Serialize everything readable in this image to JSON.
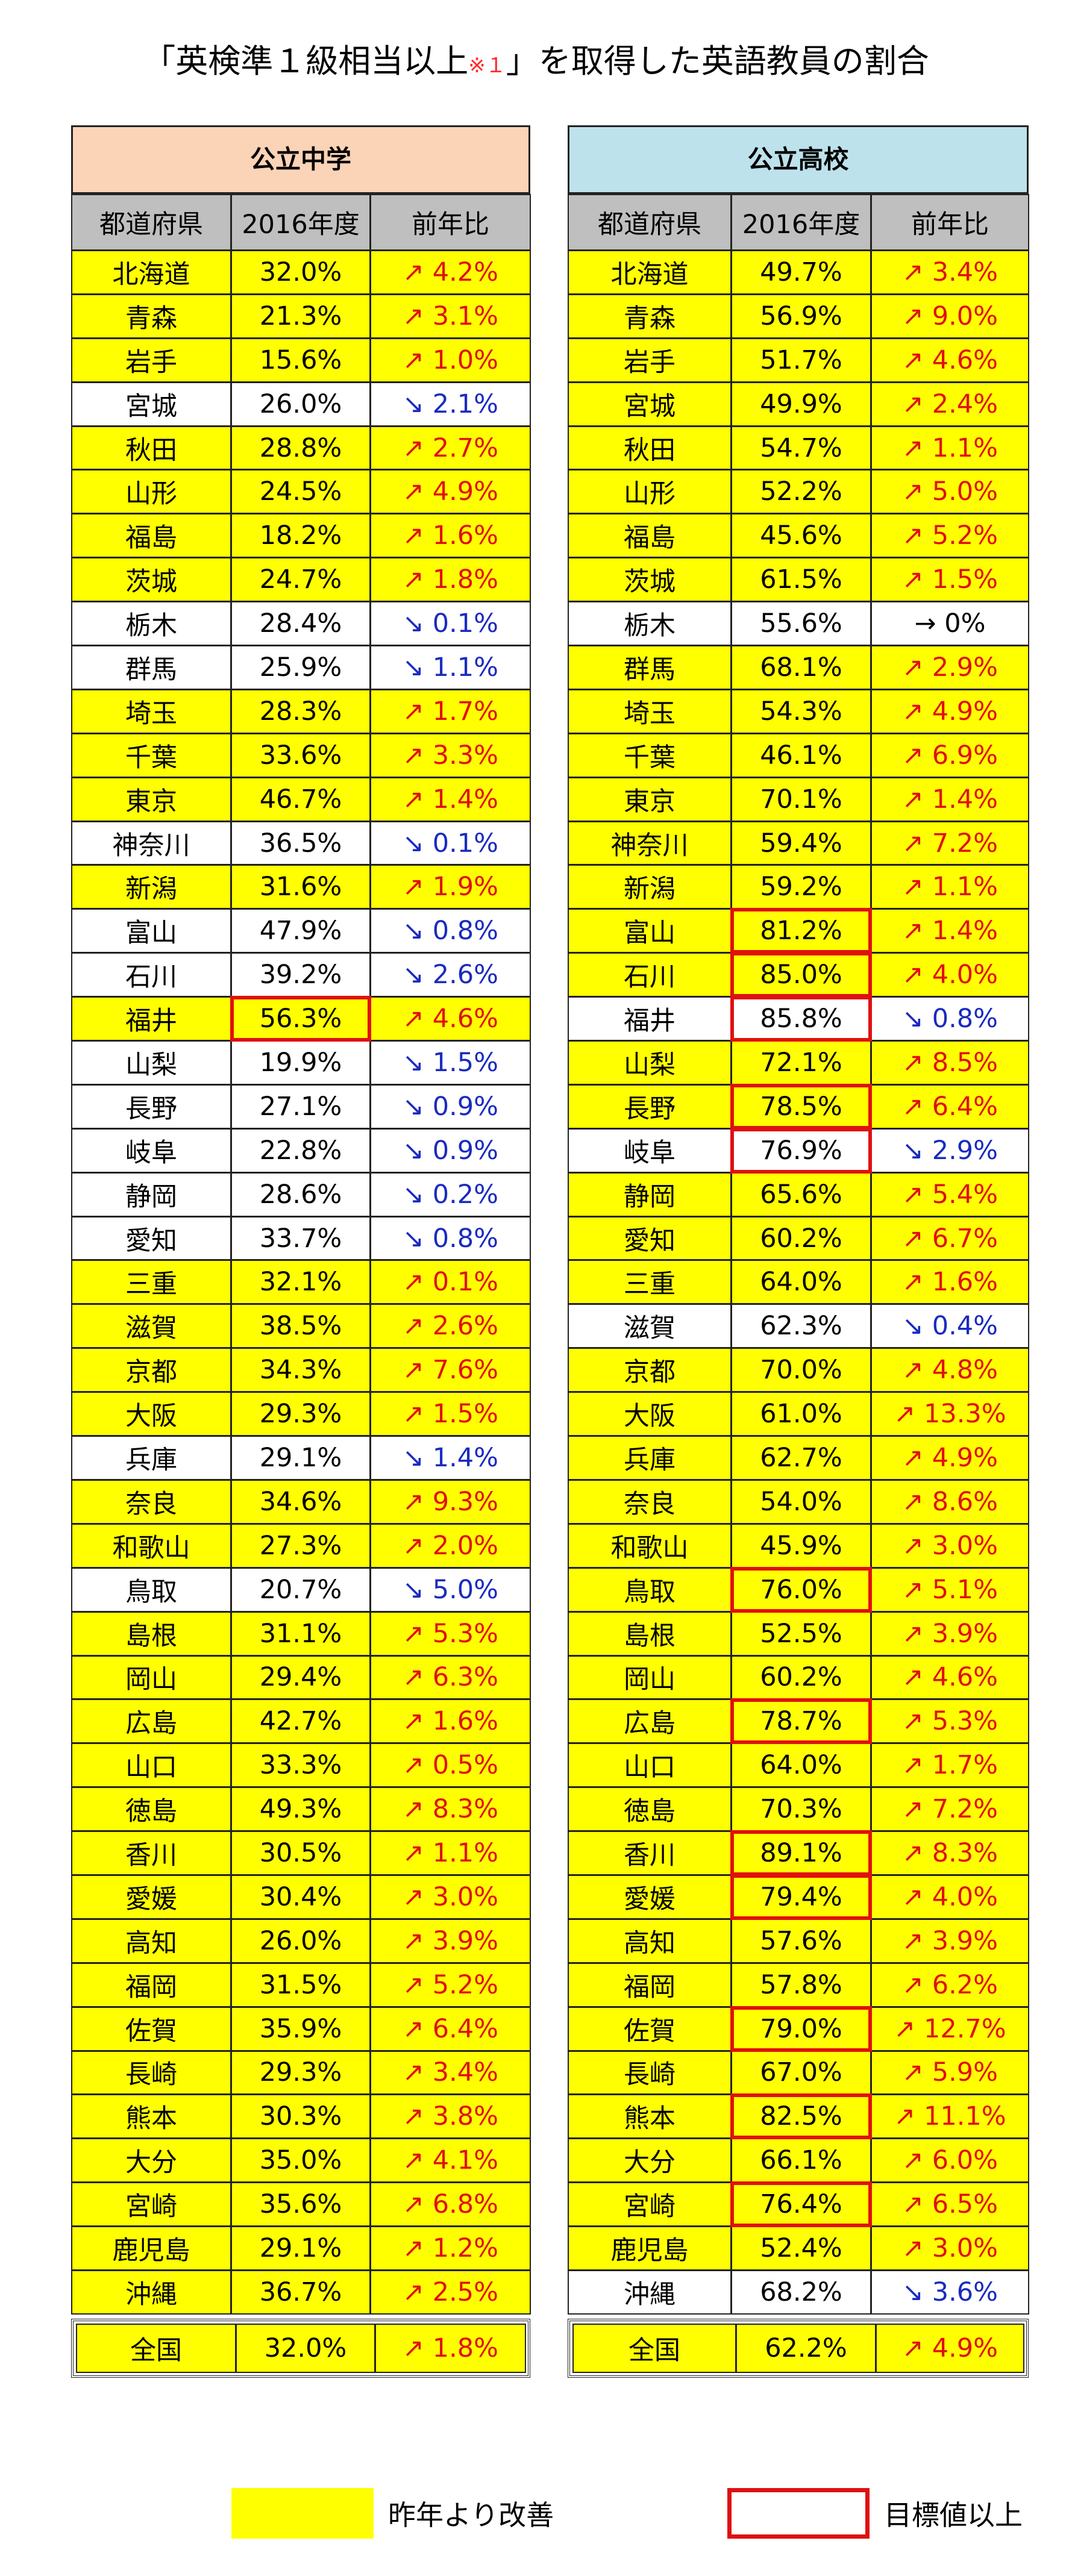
{
  "title": {
    "main": "「英検準１級相当以上",
    "note": "※１",
    "tail": "」を取得した英語教員の割合"
  },
  "columns": {
    "pref": "都道府県",
    "year": "2016年度",
    "change": "前年比"
  },
  "tables": [
    {
      "heading": "公立中学",
      "rows": [
        {
          "pref": "北海道",
          "value": "32.0%",
          "change": "↗ 4.2%",
          "trend": "up",
          "improved": true,
          "target": false
        },
        {
          "pref": "青森",
          "value": "21.3%",
          "change": "↗ 3.1%",
          "trend": "up",
          "improved": true,
          "target": false
        },
        {
          "pref": "岩手",
          "value": "15.6%",
          "change": "↗ 1.0%",
          "trend": "up",
          "improved": true,
          "target": false
        },
        {
          "pref": "宮城",
          "value": "26.0%",
          "change": "↘ 2.1%",
          "trend": "down",
          "improved": false,
          "target": false
        },
        {
          "pref": "秋田",
          "value": "28.8%",
          "change": "↗ 2.7%",
          "trend": "up",
          "improved": true,
          "target": false
        },
        {
          "pref": "山形",
          "value": "24.5%",
          "change": "↗ 4.9%",
          "trend": "up",
          "improved": true,
          "target": false
        },
        {
          "pref": "福島",
          "value": "18.2%",
          "change": "↗ 1.6%",
          "trend": "up",
          "improved": true,
          "target": false
        },
        {
          "pref": "茨城",
          "value": "24.7%",
          "change": "↗ 1.8%",
          "trend": "up",
          "improved": true,
          "target": false
        },
        {
          "pref": "栃木",
          "value": "28.4%",
          "change": "↘ 0.1%",
          "trend": "down",
          "improved": false,
          "target": false
        },
        {
          "pref": "群馬",
          "value": "25.9%",
          "change": "↘ 1.1%",
          "trend": "down",
          "improved": false,
          "target": false
        },
        {
          "pref": "埼玉",
          "value": "28.3%",
          "change": "↗ 1.7%",
          "trend": "up",
          "improved": true,
          "target": false
        },
        {
          "pref": "千葉",
          "value": "33.6%",
          "change": "↗ 3.3%",
          "trend": "up",
          "improved": true,
          "target": false
        },
        {
          "pref": "東京",
          "value": "46.7%",
          "change": "↗ 1.4%",
          "trend": "up",
          "improved": true,
          "target": false
        },
        {
          "pref": "神奈川",
          "value": "36.5%",
          "change": "↘ 0.1%",
          "trend": "down",
          "improved": false,
          "target": false
        },
        {
          "pref": "新潟",
          "value": "31.6%",
          "change": "↗ 1.9%",
          "trend": "up",
          "improved": true,
          "target": false
        },
        {
          "pref": "富山",
          "value": "47.9%",
          "change": "↘ 0.8%",
          "trend": "down",
          "improved": false,
          "target": false
        },
        {
          "pref": "石川",
          "value": "39.2%",
          "change": "↘ 2.6%",
          "trend": "down",
          "improved": false,
          "target": false
        },
        {
          "pref": "福井",
          "value": "56.3%",
          "change": "↗ 4.6%",
          "trend": "up",
          "improved": true,
          "target": true
        },
        {
          "pref": "山梨",
          "value": "19.9%",
          "change": "↘ 1.5%",
          "trend": "down",
          "improved": false,
          "target": false
        },
        {
          "pref": "長野",
          "value": "27.1%",
          "change": "↘ 0.9%",
          "trend": "down",
          "improved": false,
          "target": false
        },
        {
          "pref": "岐阜",
          "value": "22.8%",
          "change": "↘ 0.9%",
          "trend": "down",
          "improved": false,
          "target": false
        },
        {
          "pref": "静岡",
          "value": "28.6%",
          "change": "↘ 0.2%",
          "trend": "down",
          "improved": false,
          "target": false
        },
        {
          "pref": "愛知",
          "value": "33.7%",
          "change": "↘ 0.8%",
          "trend": "down",
          "improved": false,
          "target": false
        },
        {
          "pref": "三重",
          "value": "32.1%",
          "change": "↗ 0.1%",
          "trend": "up",
          "improved": true,
          "target": false
        },
        {
          "pref": "滋賀",
          "value": "38.5%",
          "change": "↗ 2.6%",
          "trend": "up",
          "improved": true,
          "target": false
        },
        {
          "pref": "京都",
          "value": "34.3%",
          "change": "↗ 7.6%",
          "trend": "up",
          "improved": true,
          "target": false
        },
        {
          "pref": "大阪",
          "value": "29.3%",
          "change": "↗ 1.5%",
          "trend": "up",
          "improved": true,
          "target": false
        },
        {
          "pref": "兵庫",
          "value": "29.1%",
          "change": "↘ 1.4%",
          "trend": "down",
          "improved": false,
          "target": false
        },
        {
          "pref": "奈良",
          "value": "34.6%",
          "change": "↗ 9.3%",
          "trend": "up",
          "improved": true,
          "target": false
        },
        {
          "pref": "和歌山",
          "value": "27.3%",
          "change": "↗ 2.0%",
          "trend": "up",
          "improved": true,
          "target": false
        },
        {
          "pref": "鳥取",
          "value": "20.7%",
          "change": "↘ 5.0%",
          "trend": "down",
          "improved": false,
          "target": false
        },
        {
          "pref": "島根",
          "value": "31.1%",
          "change": "↗ 5.3%",
          "trend": "up",
          "improved": true,
          "target": false
        },
        {
          "pref": "岡山",
          "value": "29.4%",
          "change": "↗ 6.3%",
          "trend": "up",
          "improved": true,
          "target": false
        },
        {
          "pref": "広島",
          "value": "42.7%",
          "change": "↗ 1.6%",
          "trend": "up",
          "improved": true,
          "target": false
        },
        {
          "pref": "山口",
          "value": "33.3%",
          "change": "↗ 0.5%",
          "trend": "up",
          "improved": true,
          "target": false
        },
        {
          "pref": "徳島",
          "value": "49.3%",
          "change": "↗ 8.3%",
          "trend": "up",
          "improved": true,
          "target": false
        },
        {
          "pref": "香川",
          "value": "30.5%",
          "change": "↗ 1.1%",
          "trend": "up",
          "improved": true,
          "target": false
        },
        {
          "pref": "愛媛",
          "value": "30.4%",
          "change": "↗ 3.0%",
          "trend": "up",
          "improved": true,
          "target": false
        },
        {
          "pref": "高知",
          "value": "26.0%",
          "change": "↗ 3.9%",
          "trend": "up",
          "improved": true,
          "target": false
        },
        {
          "pref": "福岡",
          "value": "31.5%",
          "change": "↗ 5.2%",
          "trend": "up",
          "improved": true,
          "target": false
        },
        {
          "pref": "佐賀",
          "value": "35.9%",
          "change": "↗ 6.4%",
          "trend": "up",
          "improved": true,
          "target": false
        },
        {
          "pref": "長崎",
          "value": "29.3%",
          "change": "↗ 3.4%",
          "trend": "up",
          "improved": true,
          "target": false
        },
        {
          "pref": "熊本",
          "value": "30.3%",
          "change": "↗ 3.8%",
          "trend": "up",
          "improved": true,
          "target": false
        },
        {
          "pref": "大分",
          "value": "35.0%",
          "change": "↗ 4.1%",
          "trend": "up",
          "improved": true,
          "target": false
        },
        {
          "pref": "宮崎",
          "value": "35.6%",
          "change": "↗ 6.8%",
          "trend": "up",
          "improved": true,
          "target": false
        },
        {
          "pref": "鹿児島",
          "value": "29.1%",
          "change": "↗ 1.2%",
          "trend": "up",
          "improved": true,
          "target": false
        },
        {
          "pref": "沖縄",
          "value": "36.7%",
          "change": "↗ 2.5%",
          "trend": "up",
          "improved": true,
          "target": false
        }
      ],
      "total": {
        "pref": "全国",
        "value": "32.0%",
        "change": "↗ 1.8%",
        "trend": "up",
        "improved": true,
        "target": false
      }
    },
    {
      "heading": "公立高校",
      "rows": [
        {
          "pref": "北海道",
          "value": "49.7%",
          "change": "↗ 3.4%",
          "trend": "up",
          "improved": true,
          "target": false
        },
        {
          "pref": "青森",
          "value": "56.9%",
          "change": "↗ 9.0%",
          "trend": "up",
          "improved": true,
          "target": false
        },
        {
          "pref": "岩手",
          "value": "51.7%",
          "change": "↗ 4.6%",
          "trend": "up",
          "improved": true,
          "target": false
        },
        {
          "pref": "宮城",
          "value": "49.9%",
          "change": "↗ 2.4%",
          "trend": "up",
          "improved": true,
          "target": false
        },
        {
          "pref": "秋田",
          "value": "54.7%",
          "change": "↗ 1.1%",
          "trend": "up",
          "improved": true,
          "target": false
        },
        {
          "pref": "山形",
          "value": "52.2%",
          "change": "↗ 5.0%",
          "trend": "up",
          "improved": true,
          "target": false
        },
        {
          "pref": "福島",
          "value": "45.6%",
          "change": "↗ 5.2%",
          "trend": "up",
          "improved": true,
          "target": false
        },
        {
          "pref": "茨城",
          "value": "61.5%",
          "change": "↗ 1.5%",
          "trend": "up",
          "improved": true,
          "target": false
        },
        {
          "pref": "栃木",
          "value": "55.6%",
          "change": "→ 0%",
          "trend": "flat",
          "improved": false,
          "target": false
        },
        {
          "pref": "群馬",
          "value": "68.1%",
          "change": "↗ 2.9%",
          "trend": "up",
          "improved": true,
          "target": false
        },
        {
          "pref": "埼玉",
          "value": "54.3%",
          "change": "↗ 4.9%",
          "trend": "up",
          "improved": true,
          "target": false
        },
        {
          "pref": "千葉",
          "value": "46.1%",
          "change": "↗ 6.9%",
          "trend": "up",
          "improved": true,
          "target": false
        },
        {
          "pref": "東京",
          "value": "70.1%",
          "change": "↗ 1.4%",
          "trend": "up",
          "improved": true,
          "target": false
        },
        {
          "pref": "神奈川",
          "value": "59.4%",
          "change": "↗ 7.2%",
          "trend": "up",
          "improved": true,
          "target": false
        },
        {
          "pref": "新潟",
          "value": "59.2%",
          "change": "↗ 1.1%",
          "trend": "up",
          "improved": true,
          "target": false
        },
        {
          "pref": "富山",
          "value": "81.2%",
          "change": "↗ 1.4%",
          "trend": "up",
          "improved": true,
          "target": true
        },
        {
          "pref": "石川",
          "value": "85.0%",
          "change": "↗ 4.0%",
          "trend": "up",
          "improved": true,
          "target": true
        },
        {
          "pref": "福井",
          "value": "85.8%",
          "change": "↘ 0.8%",
          "trend": "down",
          "improved": false,
          "target": true
        },
        {
          "pref": "山梨",
          "value": "72.1%",
          "change": "↗ 8.5%",
          "trend": "up",
          "improved": true,
          "target": false
        },
        {
          "pref": "長野",
          "value": "78.5%",
          "change": "↗ 6.4%",
          "trend": "up",
          "improved": true,
          "target": true
        },
        {
          "pref": "岐阜",
          "value": "76.9%",
          "change": "↘ 2.9%",
          "trend": "down",
          "improved": false,
          "target": true
        },
        {
          "pref": "静岡",
          "value": "65.6%",
          "change": "↗ 5.4%",
          "trend": "up",
          "improved": true,
          "target": false
        },
        {
          "pref": "愛知",
          "value": "60.2%",
          "change": "↗ 6.7%",
          "trend": "up",
          "improved": true,
          "target": false
        },
        {
          "pref": "三重",
          "value": "64.0%",
          "change": "↗ 1.6%",
          "trend": "up",
          "improved": true,
          "target": false
        },
        {
          "pref": "滋賀",
          "value": "62.3%",
          "change": "↘ 0.4%",
          "trend": "down",
          "improved": false,
          "target": false
        },
        {
          "pref": "京都",
          "value": "70.0%",
          "change": "↗ 4.8%",
          "trend": "up",
          "improved": true,
          "target": false
        },
        {
          "pref": "大阪",
          "value": "61.0%",
          "change": "↗ 13.3%",
          "trend": "up",
          "improved": true,
          "target": false
        },
        {
          "pref": "兵庫",
          "value": "62.7%",
          "change": "↗ 4.9%",
          "trend": "up",
          "improved": true,
          "target": false
        },
        {
          "pref": "奈良",
          "value": "54.0%",
          "change": "↗ 8.6%",
          "trend": "up",
          "improved": true,
          "target": false
        },
        {
          "pref": "和歌山",
          "value": "45.9%",
          "change": "↗ 3.0%",
          "trend": "up",
          "improved": true,
          "target": false
        },
        {
          "pref": "鳥取",
          "value": "76.0%",
          "change": "↗ 5.1%",
          "trend": "up",
          "improved": true,
          "target": true
        },
        {
          "pref": "島根",
          "value": "52.5%",
          "change": "↗ 3.9%",
          "trend": "up",
          "improved": true,
          "target": false
        },
        {
          "pref": "岡山",
          "value": "60.2%",
          "change": "↗ 4.6%",
          "trend": "up",
          "improved": true,
          "target": false
        },
        {
          "pref": "広島",
          "value": "78.7%",
          "change": "↗ 5.3%",
          "trend": "up",
          "improved": true,
          "target": true
        },
        {
          "pref": "山口",
          "value": "64.0%",
          "change": "↗ 1.7%",
          "trend": "up",
          "improved": true,
          "target": false
        },
        {
          "pref": "徳島",
          "value": "70.3%",
          "change": "↗ 7.2%",
          "trend": "up",
          "improved": true,
          "target": false
        },
        {
          "pref": "香川",
          "value": "89.1%",
          "change": "↗ 8.3%",
          "trend": "up",
          "improved": true,
          "target": true
        },
        {
          "pref": "愛媛",
          "value": "79.4%",
          "change": "↗ 4.0%",
          "trend": "up",
          "improved": true,
          "target": true
        },
        {
          "pref": "高知",
          "value": "57.6%",
          "change": "↗ 3.9%",
          "trend": "up",
          "improved": true,
          "target": false
        },
        {
          "pref": "福岡",
          "value": "57.8%",
          "change": "↗ 6.2%",
          "trend": "up",
          "improved": true,
          "target": false
        },
        {
          "pref": "佐賀",
          "value": "79.0%",
          "change": "↗ 12.7%",
          "trend": "up",
          "improved": true,
          "target": true
        },
        {
          "pref": "長崎",
          "value": "67.0%",
          "change": "↗ 5.9%",
          "trend": "up",
          "improved": true,
          "target": false
        },
        {
          "pref": "熊本",
          "value": "82.5%",
          "change": "↗ 11.1%",
          "trend": "up",
          "improved": true,
          "target": true
        },
        {
          "pref": "大分",
          "value": "66.1%",
          "change": "↗ 6.0%",
          "trend": "up",
          "improved": true,
          "target": false
        },
        {
          "pref": "宮崎",
          "value": "76.4%",
          "change": "↗ 6.5%",
          "trend": "up",
          "improved": true,
          "target": true
        },
        {
          "pref": "鹿児島",
          "value": "52.4%",
          "change": "↗ 3.0%",
          "trend": "up",
          "improved": true,
          "target": false
        },
        {
          "pref": "沖縄",
          "value": "68.2%",
          "change": "↘ 3.6%",
          "trend": "down",
          "improved": false,
          "target": false
        }
      ],
      "total": {
        "pref": "全国",
        "value": "62.2%",
        "change": "↗ 4.9%",
        "trend": "up",
        "improved": true,
        "target": false
      }
    }
  ],
  "legend": {
    "improved": "昨年より改善",
    "target": "目標値以上"
  },
  "colors": {
    "improved": "#ffff00",
    "target_border": "#e01010",
    "up": "#e01010",
    "down": "#1a2bbf",
    "jhs_header": "#fbd3b6",
    "hs_header": "#bde2ec",
    "column_header": "#bfbfbf"
  }
}
